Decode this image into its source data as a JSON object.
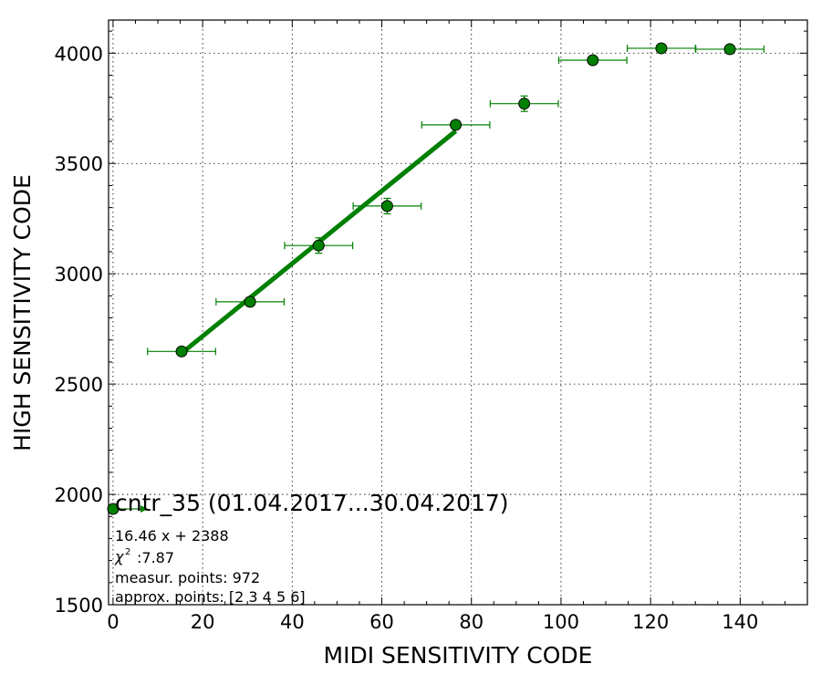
{
  "chart_data": {
    "type": "scatter",
    "xlabel": "MIDI SENSITIVITY CODE",
    "ylabel": "HIGH SENSITIVITY CODE",
    "xlim": [
      -1,
      155
    ],
    "ylim": [
      1500,
      4150
    ],
    "grid": true,
    "xticks": [
      "0",
      "20",
      "40",
      "60",
      "80",
      "100",
      "120",
      "140"
    ],
    "yticks": [
      "1500",
      "2000",
      "2500",
      "3000",
      "3500",
      "4000"
    ],
    "points": [
      {
        "x": 15.3,
        "y": 2648,
        "xerr": 7.6,
        "yerr": 10
      },
      {
        "x": 30.6,
        "y": 2873,
        "xerr": 7.6,
        "yerr": 10
      },
      {
        "x": 45.9,
        "y": 3128,
        "xerr": 7.6,
        "yerr": 35
      },
      {
        "x": 61.2,
        "y": 3307,
        "xerr": 7.6,
        "yerr": 35
      },
      {
        "x": 76.5,
        "y": 3675,
        "xerr": 7.6,
        "yerr": 10
      },
      {
        "x": 91.8,
        "y": 3771,
        "xerr": 7.6,
        "yerr": 35
      },
      {
        "x": 107.1,
        "y": 3968,
        "xerr": 7.6,
        "yerr": 15
      },
      {
        "x": 122.4,
        "y": 4022,
        "xerr": 7.6,
        "yerr": 10
      },
      {
        "x": 137.7,
        "y": 4018,
        "xerr": 7.6,
        "yerr": 10
      }
    ],
    "fit_line": {
      "x": [
        15.3,
        76.5
      ],
      "slope": 16.46,
      "intercept": 2388
    },
    "legend": {
      "title": "cntr_35 (01.04.2017...30.04.2017)",
      "equation": "16.46 x + 2388",
      "chi2_value": ":7.87",
      "measur_points": "measur. points: 972",
      "approx_points": "approx. points: [2 3 4 5 6]"
    },
    "colors": {
      "series": "#008000",
      "fit": "#008000",
      "grid": "#000000"
    }
  }
}
